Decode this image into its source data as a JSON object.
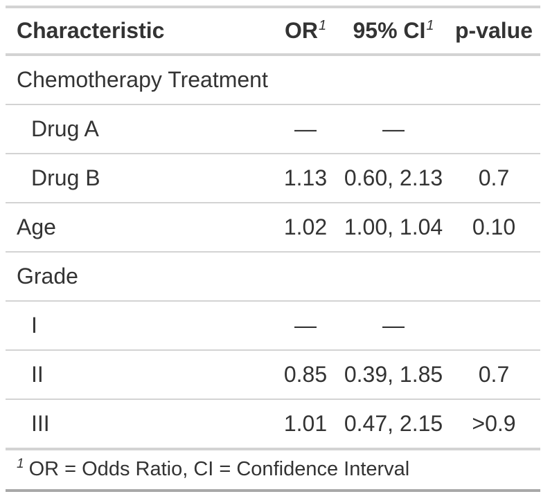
{
  "colors": {
    "text": "#333333",
    "border_light": "#D3D3D3",
    "border_dark": "#A8A8A8",
    "background": "#FFFFFF"
  },
  "table": {
    "columns": [
      {
        "label": "Characteristic",
        "footnote_mark": ""
      },
      {
        "label": "OR",
        "footnote_mark": "1"
      },
      {
        "label": "95% CI",
        "footnote_mark": "1"
      },
      {
        "label": "p-value",
        "footnote_mark": ""
      }
    ],
    "rows": [
      {
        "label": "Chemotherapy Treatment",
        "or": "",
        "ci": "",
        "p": ""
      },
      {
        "label": "Drug A",
        "or": "—",
        "ci": "—",
        "p": ""
      },
      {
        "label": "Drug B",
        "or": "1.13",
        "ci": "0.60, 2.13",
        "p": "0.7"
      },
      {
        "label": "Age",
        "or": "1.02",
        "ci": "1.00, 1.04",
        "p": "0.10"
      },
      {
        "label": "Grade",
        "or": "",
        "ci": "",
        "p": ""
      },
      {
        "label": "I",
        "or": "—",
        "ci": "—",
        "p": ""
      },
      {
        "label": "II",
        "or": "0.85",
        "ci": "0.39, 1.85",
        "p": "0.7"
      },
      {
        "label": "III",
        "or": "1.01",
        "ci": "0.47, 2.15",
        "p": ">0.9"
      }
    ],
    "footnote": {
      "mark": "1",
      "text": "OR = Odds Ratio, CI = Confidence Interval"
    }
  },
  "chart_data": {
    "type": "table",
    "title": "",
    "columns": [
      "Characteristic",
      "OR [1]",
      "95% CI [1]",
      "p-value"
    ],
    "rows": [
      [
        "Chemotherapy Treatment",
        "",
        "",
        ""
      ],
      [
        "Drug A",
        "—",
        "—",
        ""
      ],
      [
        "Drug B",
        "1.13",
        "0.60, 2.13",
        "0.7"
      ],
      [
        "Age",
        "1.02",
        "1.00, 1.04",
        "0.10"
      ],
      [
        "Grade",
        "",
        "",
        ""
      ],
      [
        "I",
        "—",
        "—",
        ""
      ],
      [
        "II",
        "0.85",
        "0.39, 1.85",
        "0.7"
      ],
      [
        "III",
        "1.01",
        "0.47, 2.15",
        ">0.9"
      ]
    ],
    "footnotes": [
      "1 OR = Odds Ratio, CI = Confidence Interval"
    ],
    "layout_hints": {
      "label_column_align": "left",
      "value_columns_align": "center",
      "indented_rows": [
        1,
        2,
        5,
        6,
        7
      ],
      "group_header_rows": [
        0,
        4
      ]
    }
  }
}
